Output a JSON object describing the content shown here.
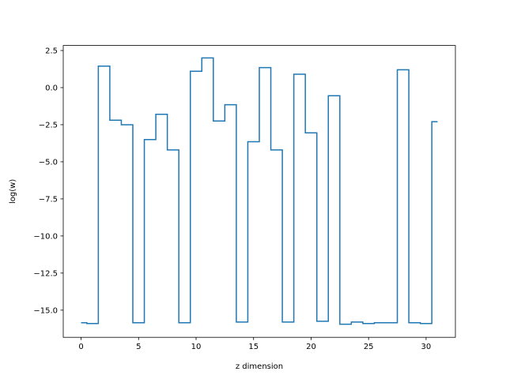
{
  "chart_data": {
    "type": "line",
    "drawstyle": "steps-mid",
    "title": "",
    "xlabel": "z dimension",
    "ylabel": "log(w)",
    "xlim": [
      -1.55,
      32.55
    ],
    "ylim": [
      -16.83,
      2.84
    ],
    "xticks": [
      0,
      5,
      10,
      15,
      20,
      25,
      30
    ],
    "xtick_labels": [
      "0",
      "5",
      "10",
      "15",
      "20",
      "25",
      "30"
    ],
    "yticks": [
      2.5,
      0.0,
      -2.5,
      -5.0,
      -7.5,
      -10.0,
      -12.5,
      -15.0
    ],
    "ytick_labels": [
      "2.5",
      "0.0",
      "−2.5",
      "−5.0",
      "−7.5",
      "−10.0",
      "−12.5",
      "−15.0"
    ],
    "grid": false,
    "series": [
      {
        "color": "#1f77b4",
        "x": [
          0,
          1,
          2,
          3,
          4,
          5,
          6,
          7,
          8,
          9,
          10,
          11,
          12,
          13,
          14,
          15,
          16,
          17,
          18,
          19,
          20,
          21,
          22,
          23,
          24,
          25,
          26,
          27,
          28,
          29,
          30,
          31
        ],
        "values": [
          -15.85,
          -15.9,
          1.45,
          -2.2,
          -2.5,
          -15.85,
          -3.5,
          -1.8,
          -4.2,
          -15.85,
          1.1,
          2.0,
          -2.25,
          -1.15,
          -15.8,
          -3.65,
          1.35,
          -4.2,
          -15.8,
          0.9,
          -3.05,
          -15.75,
          -0.55,
          -15.95,
          -15.8,
          -15.9,
          -15.85,
          -15.85,
          1.2,
          -15.85,
          -15.9,
          -2.3
        ]
      }
    ]
  }
}
